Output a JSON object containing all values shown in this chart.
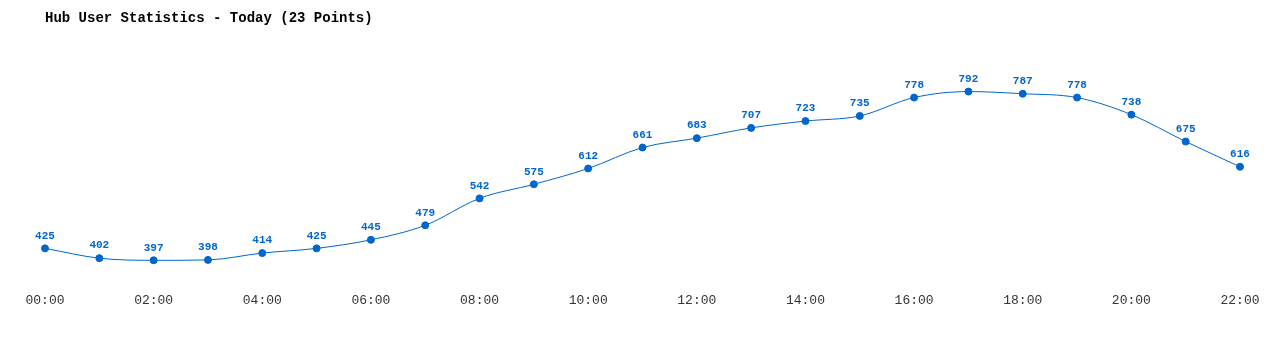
{
  "chart_data": {
    "type": "line",
    "title": "Hub User Statistics - Today (23 Points)",
    "categories": [
      "00:00",
      null,
      "02:00",
      null,
      "04:00",
      null,
      "06:00",
      null,
      "08:00",
      null,
      "10:00",
      null,
      "12:00",
      null,
      "14:00",
      null,
      "16:00",
      null,
      "18:00",
      null,
      "20:00",
      null,
      "22:00"
    ],
    "series": [
      {
        "color": "#0066cc",
        "values": [
          425,
          402,
          397,
          398,
          414,
          425,
          445,
          479,
          542,
          575,
          612,
          661,
          683,
          707,
          723,
          735,
          778,
          792,
          787,
          778,
          738,
          675,
          616
        ]
      }
    ],
    "data_labels": true,
    "marker": "circle",
    "line_style": "solid",
    "grid": false,
    "legend": false
  }
}
